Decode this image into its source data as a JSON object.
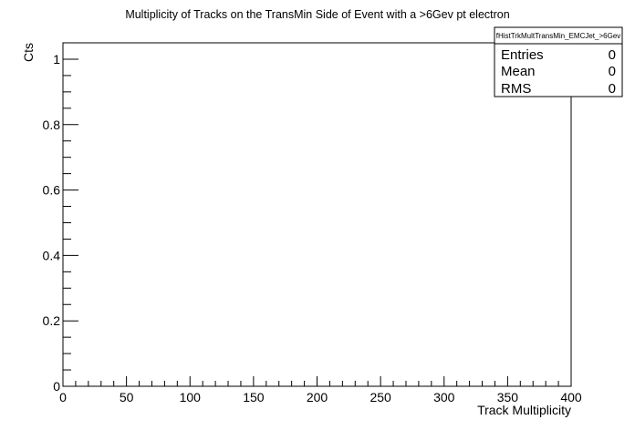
{
  "chart_data": {
    "type": "bar",
    "title": "Multiplicity of Tracks on the TransMin Side of Event with a >6Gev pt electron",
    "xlabel": "Track Multiplicity",
    "ylabel": "Cts",
    "xlim": [
      0,
      400
    ],
    "ylim": [
      0,
      1.05
    ],
    "x_ticks": [
      "0",
      "50",
      "100",
      "150",
      "200",
      "250",
      "300",
      "350",
      "400"
    ],
    "y_ticks": [
      "0",
      "0.2",
      "0.4",
      "0.6",
      "0.8",
      "1"
    ],
    "values": [],
    "grid": false,
    "legend_position": "top-right",
    "stats_box": {
      "name": "fHistTrkMultTransMin_EMCJet_>6Gev",
      "rows": [
        {
          "label": "Entries",
          "value": "0"
        },
        {
          "label": "Mean",
          "value": "0"
        },
        {
          "label": "RMS",
          "value": "0"
        }
      ]
    }
  }
}
